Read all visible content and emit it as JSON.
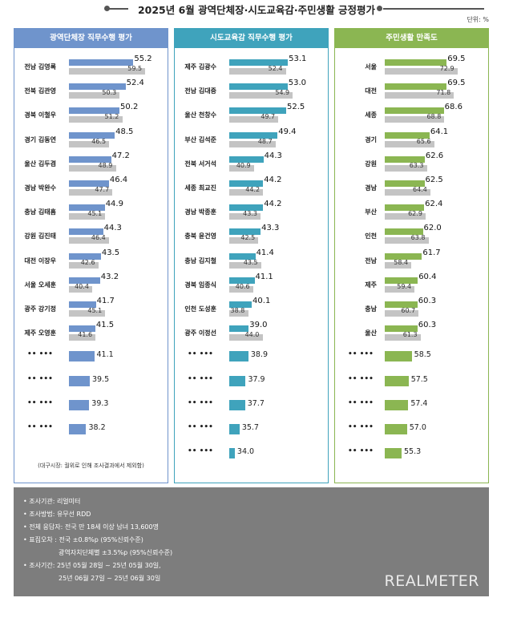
{
  "title": "2025년 6월 광역단체장·시도교육감·주민생활 긍정평가",
  "unit": "단위: %",
  "colors": {
    "panel1": "#6f94cc",
    "panel2": "#3fa3bc",
    "panel3": "#8bb652",
    "prev": "#c4c4c4"
  },
  "chart_data": [
    {
      "type": "bar",
      "title": "광역단체장 직무수행 평가",
      "labeled_rows": [
        {
          "name": "전남 김영록",
          "current": 55.2,
          "previous": 59.5
        },
        {
          "name": "전북 김관영",
          "current": 52.4,
          "previous": 50.3
        },
        {
          "name": "경북 이철우",
          "current": 50.2,
          "previous": 51.2
        },
        {
          "name": "경기 김동연",
          "current": 48.5,
          "previous": 46.5
        },
        {
          "name": "울산 김두겸",
          "current": 47.2,
          "previous": 48.9
        },
        {
          "name": "경남 박완수",
          "current": 46.4,
          "previous": 47.7
        },
        {
          "name": "충남 김태흠",
          "current": 44.9,
          "previous": 45.1
        },
        {
          "name": "강원 김진태",
          "current": 44.3,
          "previous": 46.4
        },
        {
          "name": "대전 이장우",
          "current": 43.5,
          "previous": 42.6
        },
        {
          "name": "서울 오세훈",
          "current": 43.2,
          "previous": 40.4
        },
        {
          "name": "광주 강기정",
          "current": 41.7,
          "previous": 45.1
        },
        {
          "name": "제주 오영훈",
          "current": 41.5,
          "previous": 41.6
        }
      ],
      "hidden_rows": [
        41.1,
        39.5,
        39.3,
        38.2
      ],
      "hidden_label": "•• •••",
      "note": "(대구시장: 궐위로 인해 조사결과에서 제외함)"
    },
    {
      "type": "bar",
      "title": "시도교육감 직무수행 평가",
      "labeled_rows": [
        {
          "name": "제주 김광수",
          "current": 53.1,
          "previous": 52.4
        },
        {
          "name": "전남 김대중",
          "current": 53.0,
          "previous": 54.9
        },
        {
          "name": "울산 천창수",
          "current": 52.5,
          "previous": 49.7
        },
        {
          "name": "부산 김석준",
          "current": 49.4,
          "previous": 48.7
        },
        {
          "name": "전북 서거석",
          "current": 44.3,
          "previous": 40.9
        },
        {
          "name": "세종 최교진",
          "current": 44.2,
          "previous": 44.2
        },
        {
          "name": "경남 박종훈",
          "current": 44.2,
          "previous": 43.3
        },
        {
          "name": "충북 윤건영",
          "current": 43.3,
          "previous": 42.5
        },
        {
          "name": "충남 김지철",
          "current": 41.4,
          "previous": 43.5
        },
        {
          "name": "경북 임종식",
          "current": 41.1,
          "previous": 40.6
        },
        {
          "name": "인천 도성훈",
          "current": 40.1,
          "previous": 38.8
        },
        {
          "name": "광주 이정선",
          "current": 39.0,
          "previous": 44.0
        }
      ],
      "hidden_rows": [
        38.9,
        37.9,
        37.7,
        35.7,
        34.0
      ],
      "hidden_label": "•• •••"
    },
    {
      "type": "bar",
      "title": "주민생활 만족도",
      "labeled_rows": [
        {
          "name": "서울",
          "current": 69.5,
          "previous": 72.9
        },
        {
          "name": "대전",
          "current": 69.5,
          "previous": 71.8
        },
        {
          "name": "세종",
          "current": 68.6,
          "previous": 68.8
        },
        {
          "name": "경기",
          "current": 64.1,
          "previous": 65.6
        },
        {
          "name": "강원",
          "current": 62.6,
          "previous": 63.3
        },
        {
          "name": "경남",
          "current": 62.5,
          "previous": 64.4
        },
        {
          "name": "부산",
          "current": 62.4,
          "previous": 62.9
        },
        {
          "name": "인천",
          "current": 62.0,
          "previous": 63.8
        },
        {
          "name": "전남",
          "current": 61.7,
          "previous": 58.4
        },
        {
          "name": "제주",
          "current": 60.4,
          "previous": 59.4
        },
        {
          "name": "충남",
          "current": 60.3,
          "previous": 60.7
        },
        {
          "name": "울산",
          "current": 60.3,
          "previous": 61.3
        }
      ],
      "hidden_rows": [
        58.5,
        57.5,
        57.4,
        57.0,
        55.3
      ],
      "hidden_label": "•• •••"
    }
  ],
  "footer": {
    "lines": [
      "• 조사기관: 리얼미터",
      "• 조사방법: 유무선 RDD",
      "• 전체 응답자: 전국 만 18세 이상 남녀 13,600명",
      "• 표집오차 : 전국 ±0.8%p (95%신뢰수준)",
      "광역자치단체별 ±3.5%p (95%신뢰수준)",
      "• 조사기간: 25년 05월 28일 ~ 25년 05월 30일,",
      "25년 06월 27일 ~ 25년 06월 30일"
    ],
    "brand": "REALMETER"
  }
}
